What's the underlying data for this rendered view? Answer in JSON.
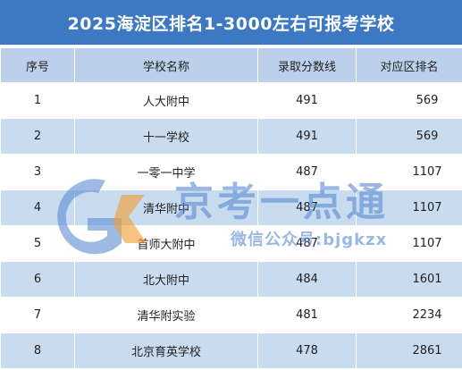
{
  "title": "2025海淀区排名1-3000左右可报考学校",
  "table": {
    "headers": [
      "序号",
      "学校名称",
      "录取分数线",
      "对应区排名"
    ],
    "rows": [
      {
        "no": "1",
        "school": "人大附中",
        "score": "491",
        "rank": "569"
      },
      {
        "no": "2",
        "school": "十一学校",
        "score": "491",
        "rank": "569"
      },
      {
        "no": "3",
        "school": "一零一中学",
        "score": "487",
        "rank": "1107"
      },
      {
        "no": "4",
        "school": "清华附中",
        "score": "487",
        "rank": "1107"
      },
      {
        "no": "5",
        "school": "首师大附中",
        "score": "487",
        "rank": "1107"
      },
      {
        "no": "6",
        "school": "北大附中",
        "score": "484",
        "rank": "1601"
      },
      {
        "no": "7",
        "school": "清华附实验",
        "score": "481",
        "rank": "2234"
      },
      {
        "no": "8",
        "school": "北京育英学校",
        "score": "478",
        "rank": "2861"
      }
    ]
  },
  "watermark": {
    "brand": "京考一点通",
    "subtitle": "微信公众号:bjgkzx"
  },
  "colors": {
    "title_bg": "#3d78c2",
    "header_bg": "#bcd0eb",
    "row_alt_bg": "#c8dbef",
    "watermark_blue": "#5c8cd2",
    "watermark_orange": "#f0a33a"
  }
}
